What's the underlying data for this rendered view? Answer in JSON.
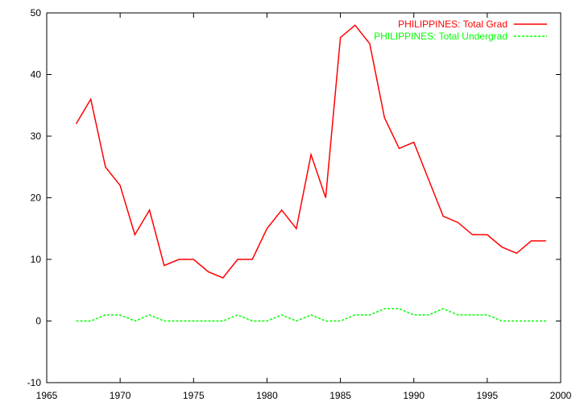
{
  "chart_data": {
    "type": "line",
    "title": "",
    "xlabel": "",
    "ylabel": "",
    "xlim": [
      1965,
      2000
    ],
    "ylim": [
      -10,
      50
    ],
    "xticks": [
      1965,
      1970,
      1975,
      1980,
      1985,
      1990,
      1995,
      2000
    ],
    "yticks": [
      -10,
      0,
      10,
      20,
      30,
      40,
      50
    ],
    "grid": false,
    "legend_position": "top-right",
    "x": [
      1967,
      1968,
      1969,
      1970,
      1971,
      1972,
      1973,
      1974,
      1975,
      1976,
      1977,
      1978,
      1979,
      1980,
      1981,
      1982,
      1983,
      1984,
      1985,
      1986,
      1987,
      1988,
      1989,
      1990,
      1991,
      1992,
      1993,
      1994,
      1995,
      1996,
      1997,
      1998,
      1999
    ],
    "series": [
      {
        "name": "PHILIPPINES: Total Grad",
        "color": "#ff0000",
        "dash": "solid",
        "values": [
          32,
          36,
          25,
          22,
          14,
          18,
          9,
          10,
          10,
          8,
          7,
          10,
          10,
          15,
          18,
          15,
          27,
          20,
          46,
          48,
          45,
          33,
          28,
          29,
          23,
          17,
          16,
          14,
          14,
          12,
          11,
          13,
          13
        ]
      },
      {
        "name": "PHILIPPINES: Total Undergrad",
        "color": "#00ff00",
        "dash": "dashed",
        "values": [
          0,
          0,
          1,
          1,
          0,
          1,
          0,
          0,
          0,
          0,
          0,
          1,
          0,
          0,
          1,
          0,
          1,
          0,
          0,
          1,
          1,
          2,
          2,
          1,
          1,
          2,
          1,
          1,
          1,
          0,
          0,
          0,
          0
        ]
      }
    ]
  }
}
